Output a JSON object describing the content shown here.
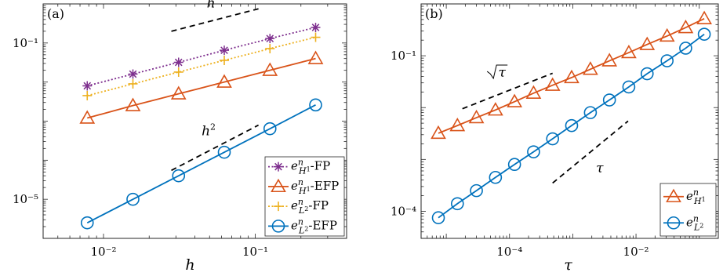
{
  "chart_data": [
    {
      "type": "line",
      "panel_label": "(a)",
      "xlabel": "h",
      "xscale": "log",
      "yscale": "log",
      "xlim": [
        0.004,
        0.4
      ],
      "ylim": [
        1e-06,
        1
      ],
      "x_ticks": [
        {
          "v": 0.01,
          "label": "10⁻²"
        },
        {
          "v": 0.1,
          "label": "10⁻¹"
        }
      ],
      "y_ticks": [
        {
          "v": 0.1,
          "label": "10⁻¹"
        },
        {
          "v": 1e-05,
          "label": "10⁻⁵"
        }
      ],
      "x": [
        0.0078125,
        0.015625,
        0.03125,
        0.0625,
        0.125,
        0.25
      ],
      "series": [
        {
          "name": "e_H1-FP",
          "color": "#7E2F8E",
          "marker": "star",
          "dash": "dotted",
          "values": [
            0.008,
            0.016,
            0.032,
            0.065,
            0.13,
            0.25
          ]
        },
        {
          "name": "e_H1-EFP",
          "color": "#D95319",
          "marker": "triangle",
          "dash": "solid",
          "values": [
            0.0012,
            0.0025,
            0.005,
            0.01,
            0.02,
            0.04
          ]
        },
        {
          "name": "e_L2-FP",
          "color": "#EDB120",
          "marker": "plus",
          "dash": "dotted",
          "values": [
            0.0045,
            0.009,
            0.018,
            0.036,
            0.072,
            0.14
          ]
        },
        {
          "name": "e_L2-EFP",
          "color": "#0072BD",
          "marker": "circle",
          "dash": "solid",
          "values": [
            2.5e-06,
            1e-05,
            4e-05,
            0.00016,
            0.00064,
            0.0026
          ]
        }
      ],
      "reference_lines": [
        {
          "label": "h",
          "x": [
            0.028,
            0.105
          ],
          "y": [
            0.2,
            0.75
          ]
        },
        {
          "label": "h2",
          "x": [
            0.028,
            0.105
          ],
          "y": [
            5.5e-05,
            0.00079
          ]
        }
      ],
      "legend_position": "bottom-right",
      "legend": [
        {
          "base": "e",
          "sup": "n",
          "sub": "H",
          "subsup": "1",
          "suffix": "-FP"
        },
        {
          "base": "e",
          "sup": "n",
          "sub": "H",
          "subsup": "1",
          "suffix": "-EFP"
        },
        {
          "base": "e",
          "sup": "n",
          "sub": "L",
          "subsup": "2",
          "suffix": "-FP"
        },
        {
          "base": "e",
          "sup": "n",
          "sub": "L",
          "subsup": "2",
          "suffix": "-EFP"
        }
      ]
    },
    {
      "type": "line",
      "panel_label": "(b)",
      "xlabel": "τ",
      "xscale": "log",
      "yscale": "log",
      "xlim": [
        4e-06,
        0.2
      ],
      "ylim": [
        3e-05,
        1
      ],
      "x_ticks": [
        {
          "v": 0.0001,
          "label": "10⁻⁴"
        },
        {
          "v": 0.01,
          "label": "10⁻²"
        }
      ],
      "y_ticks": [
        {
          "v": 0.1,
          "label": "10⁻¹"
        },
        {
          "v": 0.0001,
          "label": "10⁻⁴"
        }
      ],
      "x": [
        7.5e-06,
        1.5e-05,
        3e-05,
        6e-05,
        0.00012,
        0.00024,
        0.00048,
        0.00096,
        0.0019,
        0.0038,
        0.0077,
        0.015,
        0.031,
        0.061,
        0.12
      ],
      "series": [
        {
          "name": "e_H1",
          "color": "#D95319",
          "marker": "triangle",
          "dash": "solid",
          "values": [
            0.0032,
            0.0045,
            0.0064,
            0.009,
            0.013,
            0.019,
            0.027,
            0.038,
            0.055,
            0.08,
            0.115,
            0.165,
            0.24,
            0.35,
            0.52
          ]
        },
        {
          "name": "e_L2",
          "color": "#0072BD",
          "marker": "circle",
          "dash": "solid",
          "values": [
            7.5e-05,
            0.00014,
            0.00025,
            0.00045,
            0.0008,
            0.0014,
            0.0025,
            0.0045,
            0.008,
            0.014,
            0.025,
            0.045,
            0.08,
            0.14,
            0.26
          ]
        }
      ],
      "reference_lines": [
        {
          "label": "sqrt-tau",
          "x": [
            1.8e-05,
            0.00048
          ],
          "y": [
            0.0095,
            0.046
          ]
        },
        {
          "label": "tau",
          "x": [
            0.00048,
            0.0075
          ],
          "y": [
            0.00035,
            0.0055
          ]
        }
      ],
      "legend_position": "bottom-right",
      "legend": [
        {
          "base": "e",
          "sup": "n",
          "sub": "H",
          "subsup": "1",
          "suffix": ""
        },
        {
          "base": "e",
          "sup": "n",
          "sub": "L",
          "subsup": "2",
          "suffix": ""
        }
      ]
    }
  ]
}
